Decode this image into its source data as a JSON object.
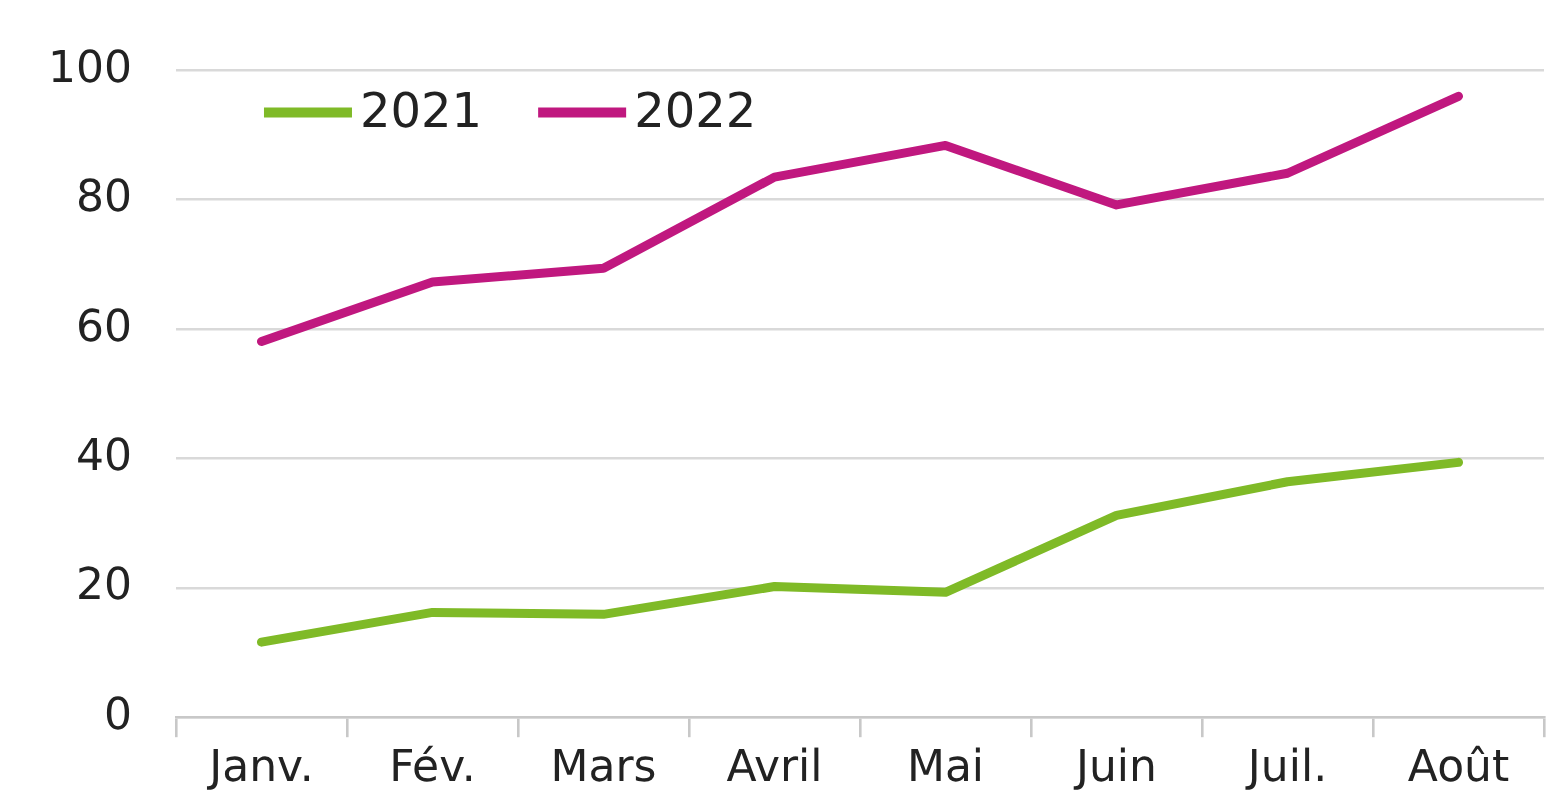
{
  "chart_data": {
    "type": "line",
    "categories": [
      "Janv.",
      "Fév.",
      "Mars",
      "Avril",
      "Mai",
      "Juin",
      "Juil.",
      "Août"
    ],
    "series": [
      {
        "name": "2021",
        "color": "#7fba27",
        "values": [
          11.6,
          16.2,
          15.9,
          20.2,
          19.3,
          31.2,
          36.4,
          39.4
        ]
      },
      {
        "name": "2022",
        "color": "#c0187f",
        "values": [
          58.1,
          67.3,
          69.4,
          83.5,
          88.4,
          79.2,
          84.1,
          96.0
        ]
      }
    ],
    "ylim": [
      0,
      100
    ],
    "yticks": [
      0,
      20,
      40,
      60,
      80,
      100
    ],
    "grid": "y",
    "legend": "top left",
    "marker": "none",
    "line_style": "solid"
  }
}
